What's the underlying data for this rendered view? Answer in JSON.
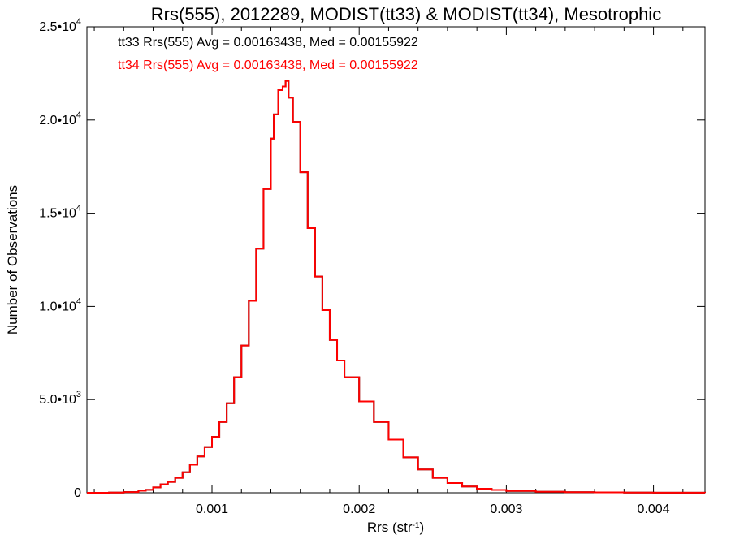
{
  "chart_data": {
    "type": "histogram",
    "title": "Rrs(555), 2012289, MODIST(tt33) & MODIST(tt34), Mesotrophic",
    "xlabel": {
      "base": "Rrs (str",
      "sup": "-1",
      "tail": ")"
    },
    "ylabel": "Number of Observations",
    "xlim": [
      0.00015,
      0.00435
    ],
    "ylim": [
      0,
      25000
    ],
    "x_ticks": [
      {
        "value": 0.001,
        "label": "0.001"
      },
      {
        "value": 0.002,
        "label": "0.002"
      },
      {
        "value": 0.003,
        "label": "0.003"
      },
      {
        "value": 0.004,
        "label": "0.004"
      }
    ],
    "y_ticks": [
      {
        "value": 0,
        "label": "0",
        "sup": ""
      },
      {
        "value": 5000,
        "label": "5.0•10",
        "sup": "3"
      },
      {
        "value": 10000,
        "label": "1.0•10",
        "sup": "4"
      },
      {
        "value": 15000,
        "label": "1.5•10",
        "sup": "4"
      },
      {
        "value": 20000,
        "label": "2.0•10",
        "sup": "4"
      },
      {
        "value": 25000,
        "label": "2.5•10",
        "sup": "4"
      }
    ],
    "grid": false,
    "legend_position": "top-left",
    "series": [
      {
        "name": "tt33 Rrs(555)",
        "legend_text": "tt33 Rrs(555) Avg = 0.00163438, Med = 0.00155922",
        "color": "#000000",
        "x": [
          0.00015,
          0.0002,
          0.0003,
          0.0004,
          0.0005,
          0.00055,
          0.0006,
          0.00065,
          0.0007,
          0.00075,
          0.0008,
          0.00085,
          0.0009,
          0.00095,
          0.001,
          0.00105,
          0.0011,
          0.00115,
          0.0012,
          0.00125,
          0.0013,
          0.00135,
          0.0014,
          0.00142,
          0.00145,
          0.00148,
          0.0015,
          0.00152,
          0.00155,
          0.0016,
          0.00165,
          0.0017,
          0.00175,
          0.0018,
          0.00185,
          0.0019,
          0.002,
          0.0021,
          0.0022,
          0.0023,
          0.0024,
          0.0025,
          0.0026,
          0.0027,
          0.0028,
          0.0029,
          0.003,
          0.0032,
          0.0034,
          0.0036,
          0.0038,
          0.004,
          0.0042,
          0.00435
        ],
        "y": [
          0,
          0,
          10,
          40,
          110,
          160,
          290,
          450,
          580,
          800,
          1100,
          1500,
          1950,
          2450,
          3000,
          3800,
          4800,
          6200,
          7900,
          10300,
          13100,
          16300,
          19000,
          20300,
          21600,
          21800,
          22100,
          21200,
          19900,
          17200,
          14200,
          11600,
          9800,
          8200,
          7100,
          6200,
          4900,
          3800,
          2850,
          1900,
          1250,
          800,
          520,
          340,
          220,
          150,
          100,
          55,
          35,
          22,
          12,
          8,
          4,
          0
        ]
      },
      {
        "name": "tt34 Rrs(555)",
        "legend_text": "tt34 Rrs(555) Avg = 0.00163438, Med = 0.00155922",
        "color": "#ff0000",
        "x": [
          0.00015,
          0.0002,
          0.0003,
          0.0004,
          0.0005,
          0.00055,
          0.0006,
          0.00065,
          0.0007,
          0.00075,
          0.0008,
          0.00085,
          0.0009,
          0.00095,
          0.001,
          0.00105,
          0.0011,
          0.00115,
          0.0012,
          0.00125,
          0.0013,
          0.00135,
          0.0014,
          0.00142,
          0.00145,
          0.00148,
          0.0015,
          0.00152,
          0.00155,
          0.0016,
          0.00165,
          0.0017,
          0.00175,
          0.0018,
          0.00185,
          0.0019,
          0.002,
          0.0021,
          0.0022,
          0.0023,
          0.0024,
          0.0025,
          0.0026,
          0.0027,
          0.0028,
          0.0029,
          0.003,
          0.0032,
          0.0034,
          0.0036,
          0.0038,
          0.004,
          0.0042,
          0.00435
        ],
        "y": [
          0,
          0,
          10,
          40,
          110,
          160,
          290,
          450,
          580,
          800,
          1100,
          1500,
          1950,
          2450,
          3000,
          3800,
          4800,
          6200,
          7900,
          10300,
          13100,
          16300,
          19000,
          20300,
          21600,
          21800,
          22100,
          21200,
          19900,
          17200,
          14200,
          11600,
          9800,
          8200,
          7100,
          6200,
          4900,
          3800,
          2850,
          1900,
          1250,
          800,
          520,
          340,
          220,
          150,
          100,
          55,
          35,
          22,
          12,
          8,
          4,
          0
        ]
      }
    ]
  }
}
